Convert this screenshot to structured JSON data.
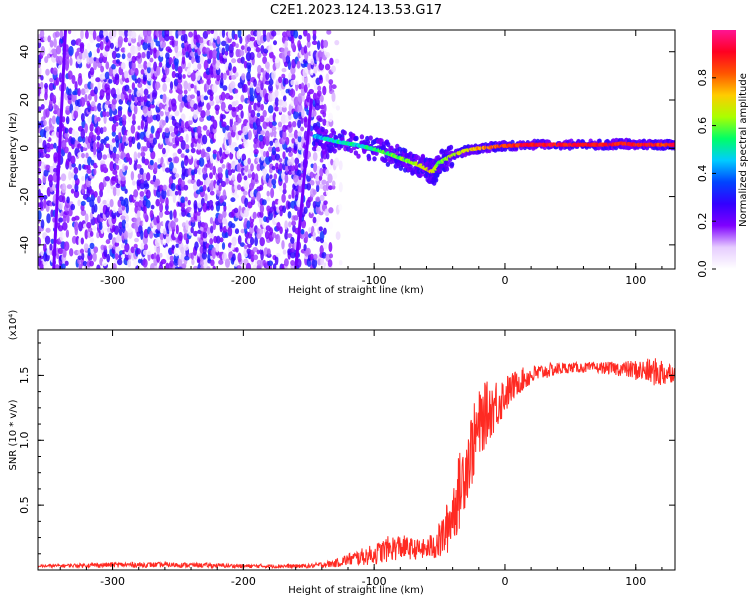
{
  "title": "C2E1.2023.124.13.53.G17",
  "colors": {
    "snr_line": "#ff2a22",
    "colormap": [
      "#ffffff",
      "#e6ccff",
      "#7f00ff",
      "#3300ff",
      "#0044ff",
      "#00ccff",
      "#00ff66",
      "#aaff00",
      "#ffcc00",
      "#ff5500",
      "#ff0022",
      "#ff1493"
    ]
  },
  "chart_data": [
    {
      "type": "heatmap",
      "description_units": "spectrogram of frequency vs height",
      "xlabel": "Height of straight line (km)",
      "ylabel": "Frequency (Hz)",
      "xlim": [
        -357,
        130
      ],
      "ylim": [
        -50,
        49
      ],
      "xticks": [
        -300,
        -200,
        -100,
        0,
        100
      ],
      "xtick_labels": [
        "-300",
        "-200",
        "-100",
        "0",
        "100"
      ],
      "yticks": [
        -40,
        -20,
        0,
        20,
        40
      ],
      "ytick_labels": [
        "-40",
        "-20",
        "0",
        "20",
        "40"
      ],
      "colorbar": {
        "label": "Normalized spectral amplitude",
        "range": [
          0.0,
          1.0
        ],
        "ticks": [
          0.0,
          0.2,
          0.4,
          0.6,
          0.8
        ],
        "tick_labels": [
          "0.0",
          "0.2",
          "0.4",
          "0.6",
          "0.8"
        ]
      },
      "noise_region_x": [
        -357,
        -140
      ],
      "ridge": {
        "x": [
          -145,
          -130,
          -110,
          -95,
          -85,
          -75,
          -65,
          -58,
          -55,
          -50,
          -40,
          -30,
          -20,
          -10,
          0,
          20,
          40,
          60,
          80,
          90,
          100,
          110,
          120,
          130
        ],
        "y": [
          5,
          3,
          1,
          -1,
          -3,
          -5,
          -7,
          -9,
          -10,
          -6,
          -3,
          -1,
          0,
          0.5,
          1,
          1.5,
          1.5,
          1.5,
          1.5,
          2,
          1.5,
          1.5,
          1.5,
          1.5
        ],
        "amplitude": [
          0.45,
          0.5,
          0.5,
          0.55,
          0.6,
          0.6,
          0.65,
          0.7,
          0.7,
          0.6,
          0.65,
          0.7,
          0.75,
          0.8,
          0.85,
          0.9,
          0.9,
          0.9,
          0.9,
          0.85,
          0.9,
          0.9,
          0.85,
          0.9
        ]
      },
      "streaks": [
        {
          "x": [
            -345,
            -336
          ],
          "y": [
            -50,
            49
          ]
        },
        {
          "x": [
            -160,
            -148
          ],
          "y": [
            -50,
            20
          ]
        }
      ]
    },
    {
      "type": "line",
      "xlabel": "Height of straight line (km)",
      "ylabel": "SNR (10 * v/v)",
      "y_multiplier_label": "(x10⁴)",
      "xlim": [
        -357,
        130
      ],
      "ylim": [
        0,
        1.85
      ],
      "xticks": [
        -300,
        -200,
        -100,
        0,
        100
      ],
      "xtick_labels": [
        "-300",
        "-200",
        "-100",
        "0",
        "100"
      ],
      "yticks": [
        0.5,
        1.0,
        1.5
      ],
      "ytick_labels": [
        "0.5",
        "1.0",
        "1.5"
      ],
      "x": [
        -357,
        -300,
        -250,
        -200,
        -150,
        -130,
        -120,
        -100,
        -90,
        -80,
        -70,
        -60,
        -50,
        -45,
        -40,
        -35,
        -30,
        -25,
        -20,
        -15,
        -10,
        -5,
        0,
        5,
        10,
        20,
        30,
        40,
        50,
        70,
        90,
        100,
        110,
        120,
        130
      ],
      "y": [
        0.03,
        0.04,
        0.04,
        0.03,
        0.03,
        0.05,
        0.08,
        0.12,
        0.16,
        0.18,
        0.16,
        0.16,
        0.22,
        0.3,
        0.45,
        0.6,
        0.8,
        0.95,
        1.1,
        1.2,
        1.25,
        1.3,
        1.35,
        1.4,
        1.45,
        1.5,
        1.53,
        1.55,
        1.56,
        1.56,
        1.55,
        1.54,
        1.53,
        1.52,
        1.52
      ],
      "noise_amplitude": [
        0.01,
        0.02,
        0.02,
        0.015,
        0.015,
        0.03,
        0.05,
        0.08,
        0.1,
        0.1,
        0.08,
        0.08,
        0.15,
        0.2,
        0.25,
        0.3,
        0.3,
        0.3,
        0.28,
        0.25,
        0.22,
        0.2,
        0.15,
        0.12,
        0.1,
        0.08,
        0.06,
        0.05,
        0.04,
        0.04,
        0.06,
        0.08,
        0.1,
        0.12,
        0.06
      ]
    }
  ]
}
